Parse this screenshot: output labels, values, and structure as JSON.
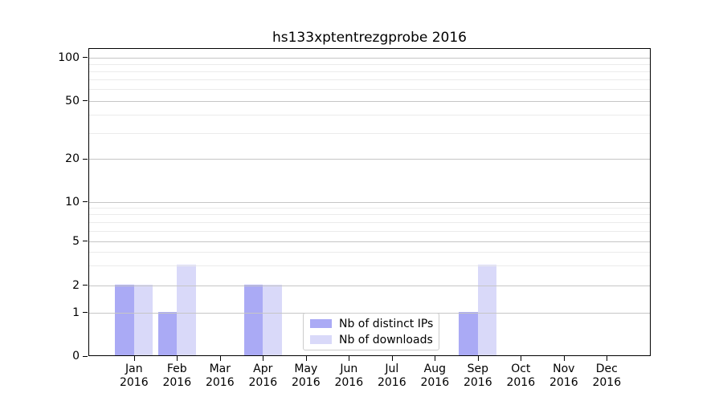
{
  "chart_data": {
    "type": "bar",
    "title": "hs133xptentrezgprobe 2016",
    "year": "2016",
    "months": [
      "Jan",
      "Feb",
      "Mar",
      "Apr",
      "May",
      "Jun",
      "Jul",
      "Aug",
      "Sep",
      "Oct",
      "Nov",
      "Dec"
    ],
    "categories": [
      "Jan 2016",
      "Feb 2016",
      "Mar 2016",
      "Apr 2016",
      "May 2016",
      "Jun 2016",
      "Jul 2016",
      "Aug 2016",
      "Sep 2016",
      "Oct 2016",
      "Nov 2016",
      "Dec 2016"
    ],
    "series": [
      {
        "name": "Nb of distinct IPs",
        "color": "#aaaaf5",
        "values": [
          2,
          1,
          0,
          2,
          0,
          0,
          0,
          0,
          1,
          0,
          0,
          0
        ]
      },
      {
        "name": "Nb of downloads",
        "color": "#d9d9f9",
        "values": [
          2,
          3,
          0,
          2,
          0,
          0,
          0,
          0,
          3,
          0,
          0,
          0
        ]
      }
    ],
    "y_axis": {
      "scale": "log-like",
      "major_ticks": [
        0,
        1,
        2,
        5,
        10,
        20,
        50,
        100
      ],
      "major_tick_labels": [
        "0",
        "1",
        "2",
        "5",
        "10",
        "20",
        "50",
        "100"
      ],
      "minor_ticks": [
        3,
        4,
        6,
        7,
        8,
        9,
        30,
        40,
        60,
        70,
        80,
        90
      ],
      "ylim": [
        0,
        100
      ]
    },
    "grid": true,
    "legend_position": "bottom-center"
  },
  "colors": {
    "bar_distinct_ips": "#aaaaf5",
    "bar_downloads": "#d9d9f9",
    "grid_major": "#c6c6c6",
    "grid_minor": "#ebebeb",
    "spine": "#000000",
    "background": "#ffffff"
  }
}
